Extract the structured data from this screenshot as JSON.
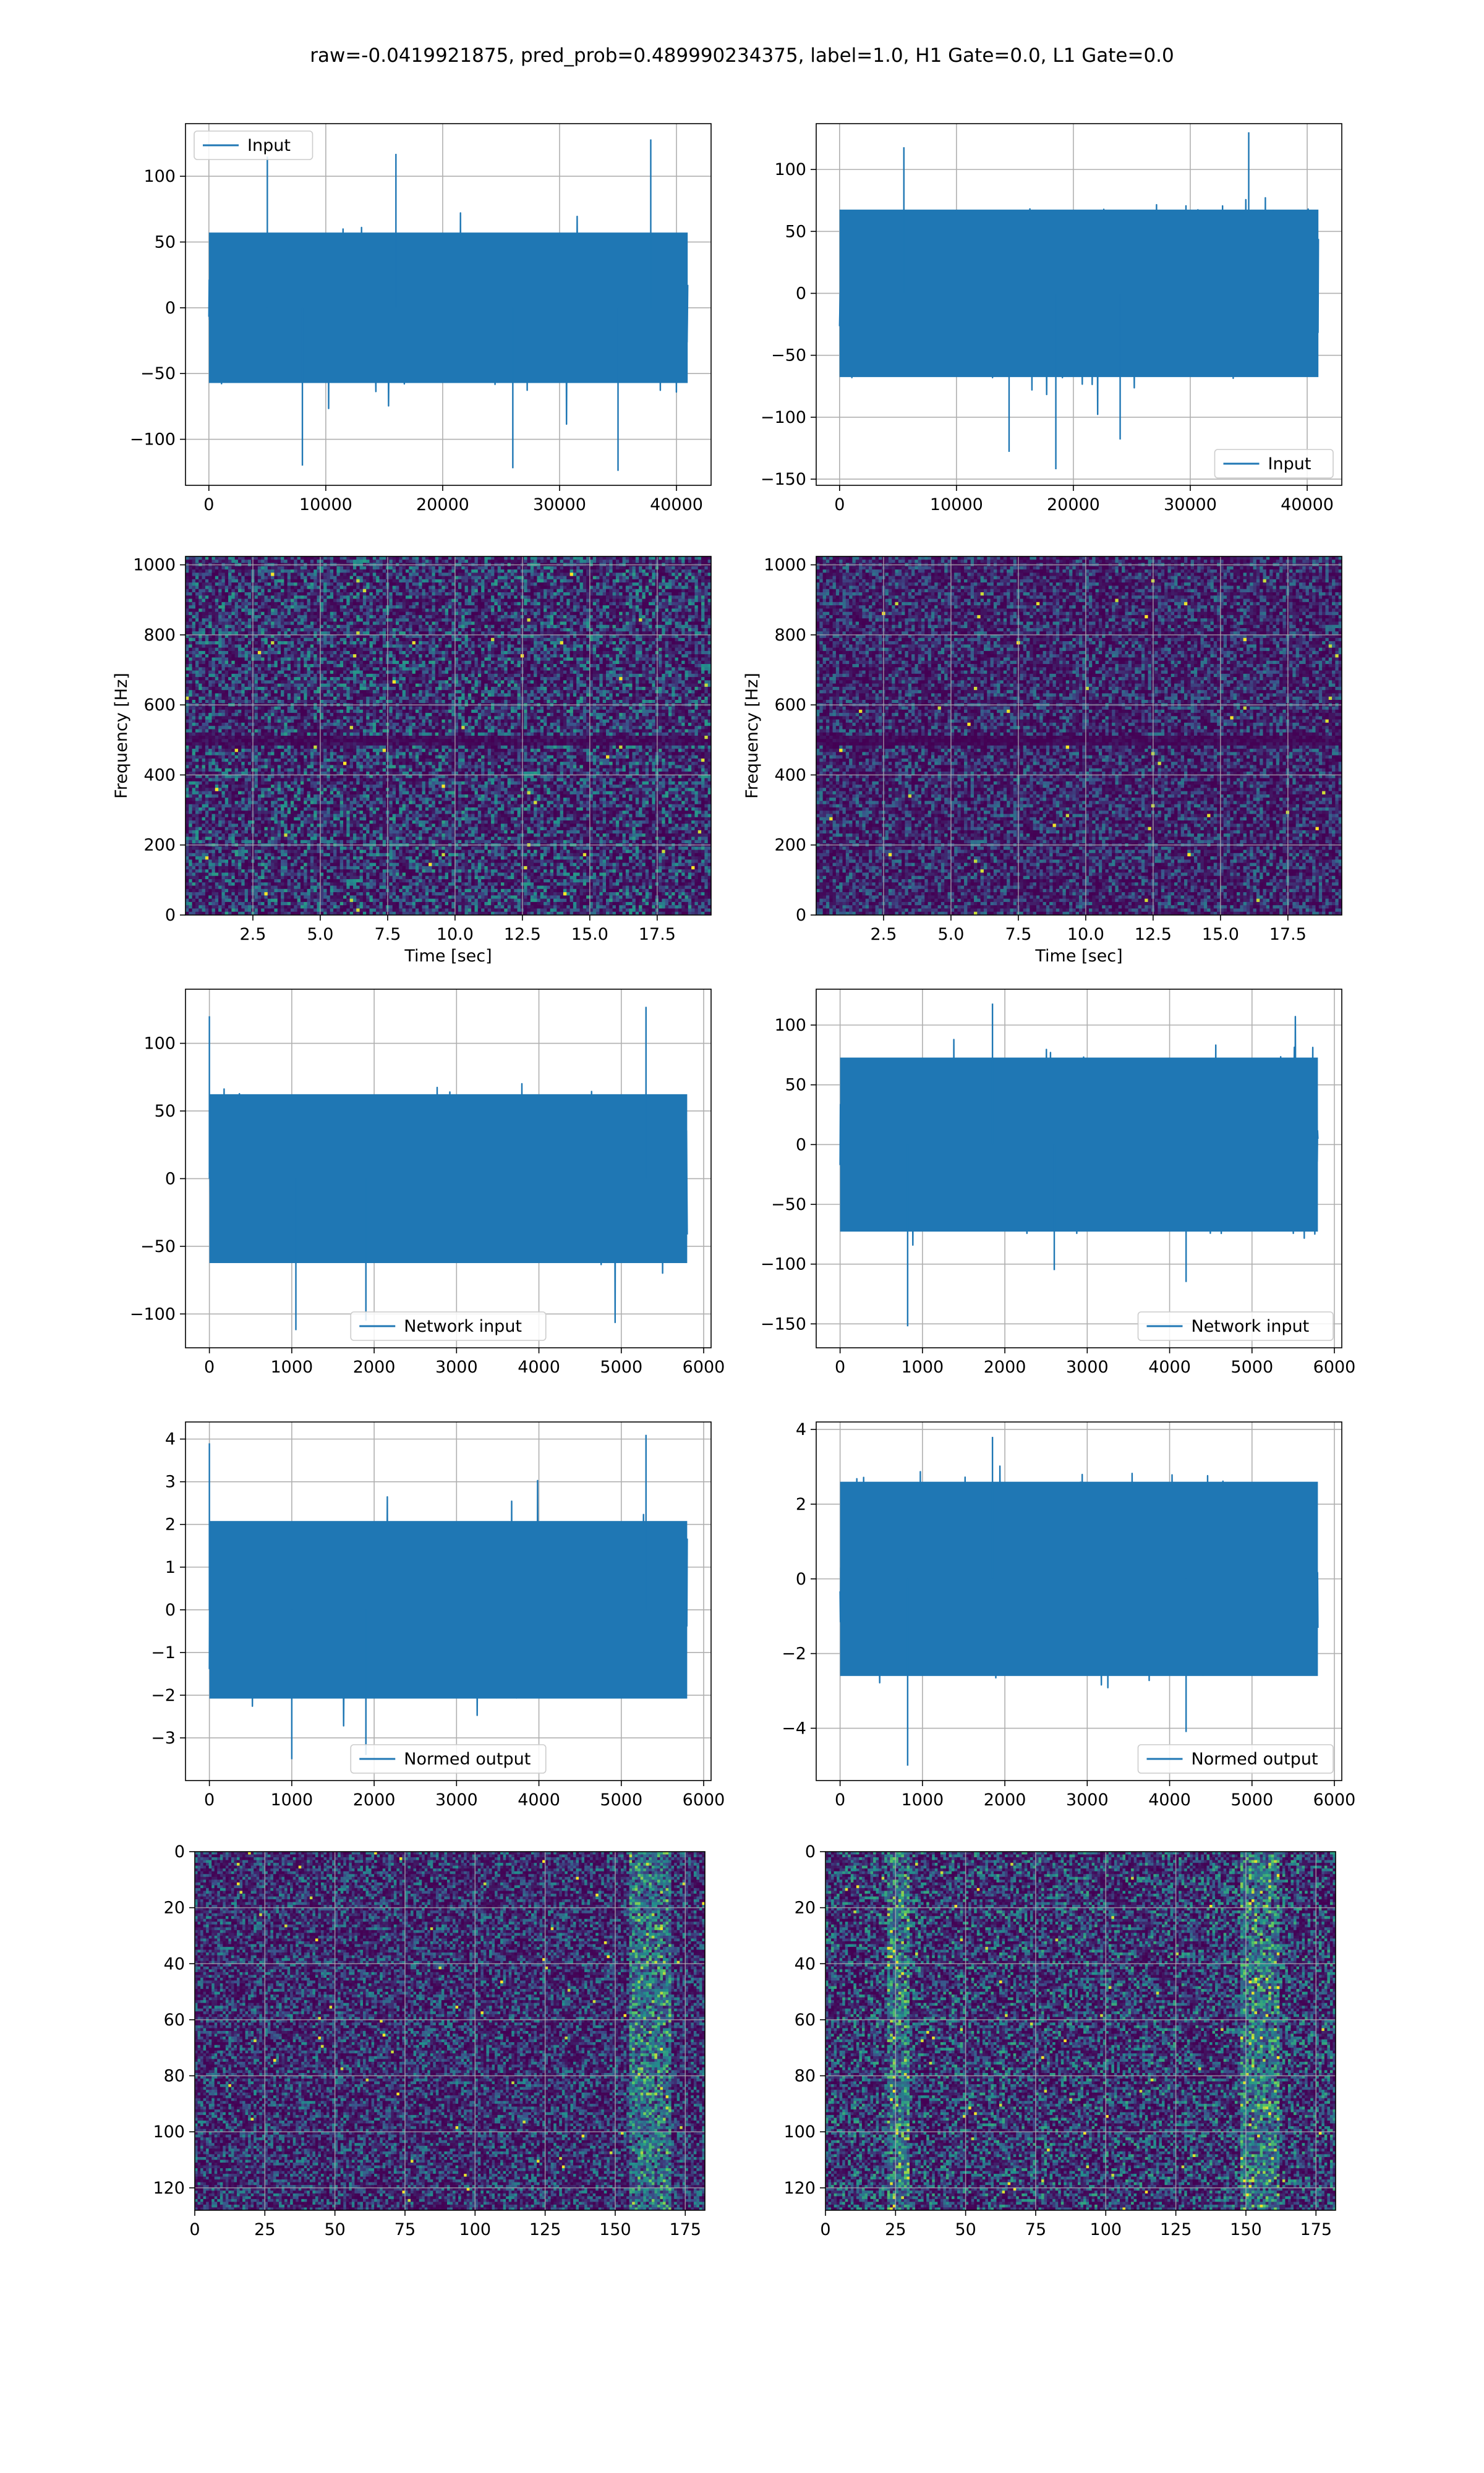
{
  "figure": {
    "suptitle": "raw=-0.0419921875, pred_prob=0.489990234375, label=1.0, H1 Gate=0.0, L1 Gate=0.0"
  },
  "colors": {
    "line": "#1f77b4",
    "grid": "#b0b0b0",
    "viridis_low": "#440154",
    "viridis_mid": "#21918c",
    "viridis_high": "#fde725"
  },
  "chart_data": [
    {
      "id": "raw-h1",
      "type": "line",
      "xlim": [
        -2000,
        42960
      ],
      "ylim": [
        -135,
        140
      ],
      "xticks": [
        0,
        10000,
        20000,
        30000,
        40000
      ],
      "yticks": [
        -100,
        -50,
        0,
        50,
        100
      ],
      "x_range": [
        0,
        40960
      ],
      "noise_sigma": 22,
      "n_points": 1400,
      "spikes": [
        {
          "x": 5000,
          "y": 115
        },
        {
          "x": 16000,
          "y": 117
        },
        {
          "x": 37800,
          "y": 128
        },
        {
          "x": 8000,
          "y": -120
        },
        {
          "x": 26000,
          "y": -122
        },
        {
          "x": 35000,
          "y": -124
        }
      ],
      "legend": {
        "label": "Input",
        "loc": "upper left"
      },
      "grid": true
    },
    {
      "id": "raw-l1",
      "type": "line",
      "xlim": [
        -2000,
        42960
      ],
      "ylim": [
        -155,
        137
      ],
      "xticks": [
        0,
        10000,
        20000,
        30000,
        40000
      ],
      "yticks": [
        -150,
        -100,
        -50,
        0,
        50,
        100
      ],
      "x_range": [
        0,
        40960
      ],
      "noise_sigma": 26,
      "n_points": 1400,
      "spikes": [
        {
          "x": 5500,
          "y": 118
        },
        {
          "x": 35000,
          "y": 130
        },
        {
          "x": 18500,
          "y": -142
        },
        {
          "x": 14500,
          "y": -128
        },
        {
          "x": 24000,
          "y": -118
        }
      ],
      "legend": {
        "label": "Input",
        "loc": "lower right"
      },
      "grid": true
    },
    {
      "id": "spec-h1",
      "type": "heatmap",
      "xlim": [
        0,
        19.5
      ],
      "ylim": [
        0,
        1024
      ],
      "xticks": [
        2.5,
        5.0,
        7.5,
        10.0,
        12.5,
        15.0,
        17.5
      ],
      "yticks": [
        0,
        200,
        400,
        600,
        800,
        1000
      ],
      "xticklabels": [
        "2.5",
        "5.0",
        "7.5",
        "10.0",
        "12.5",
        "15.0",
        "17.5"
      ],
      "xlabel": "Time [sec]",
      "ylabel": "Frequency [Hz]",
      "cols": 160,
      "rows": 110,
      "intensity": 0.55,
      "dark_bands": [
        500
      ],
      "grid": true
    },
    {
      "id": "spec-l1",
      "type": "heatmap",
      "xlim": [
        0,
        19.5
      ],
      "ylim": [
        0,
        1024
      ],
      "xticks": [
        2.5,
        5.0,
        7.5,
        10.0,
        12.5,
        15.0,
        17.5
      ],
      "yticks": [
        0,
        200,
        400,
        600,
        800,
        1000
      ],
      "xticklabels": [
        "2.5",
        "5.0",
        "7.5",
        "10.0",
        "12.5",
        "15.0",
        "17.5"
      ],
      "xlabel": "Time [sec]",
      "ylabel": "Frequency [Hz]",
      "cols": 160,
      "rows": 110,
      "intensity": 0.42,
      "dark_bands": [
        500
      ],
      "grid": true
    },
    {
      "id": "net-h1",
      "type": "line",
      "xlim": [
        -290,
        6090
      ],
      "ylim": [
        -125,
        140
      ],
      "xticks": [
        0,
        1000,
        2000,
        3000,
        4000,
        5000,
        6000
      ],
      "yticks": [
        -100,
        -50,
        0,
        50,
        100
      ],
      "x_range": [
        0,
        5800
      ],
      "noise_sigma": 24,
      "n_points": 1400,
      "spikes": [
        {
          "x": 0,
          "y": 120
        },
        {
          "x": 5300,
          "y": 127
        },
        {
          "x": 1050,
          "y": -112
        },
        {
          "x": 1900,
          "y": -105
        }
      ],
      "legend": {
        "label": "Network input",
        "loc": "lower center"
      },
      "grid": true
    },
    {
      "id": "net-l1",
      "type": "line",
      "xlim": [
        -290,
        6090
      ],
      "ylim": [
        -170,
        130
      ],
      "xticks": [
        0,
        1000,
        2000,
        3000,
        4000,
        5000,
        6000
      ],
      "yticks": [
        -150,
        -100,
        -50,
        0,
        50,
        100
      ],
      "x_range": [
        0,
        5800
      ],
      "noise_sigma": 28,
      "n_points": 1400,
      "spikes": [
        {
          "x": 1850,
          "y": 118
        },
        {
          "x": 820,
          "y": -152
        },
        {
          "x": 4200,
          "y": -115
        },
        {
          "x": 2600,
          "y": -105
        }
      ],
      "legend": {
        "label": "Network input",
        "loc": "lower right"
      },
      "grid": true
    },
    {
      "id": "norm-h1",
      "type": "line",
      "xlim": [
        -290,
        6090
      ],
      "ylim": [
        -4.0,
        4.4
      ],
      "xticks": [
        0,
        1000,
        2000,
        3000,
        4000,
        5000,
        6000
      ],
      "yticks": [
        -3,
        -2,
        -1,
        0,
        1,
        2,
        3,
        4
      ],
      "x_range": [
        0,
        5800
      ],
      "noise_sigma": 0.8,
      "n_points": 1400,
      "spikes": [
        {
          "x": 0,
          "y": 3.9
        },
        {
          "x": 5300,
          "y": 4.1
        },
        {
          "x": 1000,
          "y": -3.5
        },
        {
          "x": 1900,
          "y": -3.4
        }
      ],
      "legend": {
        "label": "Normed output",
        "loc": "lower center"
      },
      "grid": true
    },
    {
      "id": "norm-l1",
      "type": "line",
      "xlim": [
        -290,
        6090
      ],
      "ylim": [
        -5.4,
        4.2
      ],
      "xticks": [
        0,
        1000,
        2000,
        3000,
        4000,
        5000,
        6000
      ],
      "yticks": [
        -4,
        -2,
        0,
        2,
        4
      ],
      "x_range": [
        0,
        5800
      ],
      "noise_sigma": 1.0,
      "n_points": 1400,
      "spikes": [
        {
          "x": 1850,
          "y": 3.8
        },
        {
          "x": 820,
          "y": -5.0
        },
        {
          "x": 4200,
          "y": -4.1
        }
      ],
      "legend": {
        "label": "Normed output",
        "loc": "lower right"
      },
      "grid": true
    },
    {
      "id": "img-h1",
      "type": "heatmap",
      "xlim": [
        0,
        182
      ],
      "ylim": [
        128,
        0
      ],
      "xticks": [
        0,
        25,
        50,
        75,
        100,
        125,
        150,
        175
      ],
      "yticks": [
        0,
        20,
        40,
        60,
        80,
        100,
        120
      ],
      "cols": 182,
      "rows": 128,
      "intensity": 0.5,
      "hot_cols": [
        [
          155,
          170
        ]
      ],
      "grid": true
    },
    {
      "id": "img-l1",
      "type": "heatmap",
      "xlim": [
        0,
        182
      ],
      "ylim": [
        128,
        0
      ],
      "xticks": [
        0,
        25,
        50,
        75,
        100,
        125,
        150,
        175
      ],
      "yticks": [
        0,
        20,
        40,
        60,
        80,
        100,
        120
      ],
      "cols": 182,
      "rows": 128,
      "intensity": 0.6,
      "hot_cols": [
        [
          22,
          30
        ],
        [
          148,
          162
        ]
      ],
      "grid": true
    }
  ]
}
